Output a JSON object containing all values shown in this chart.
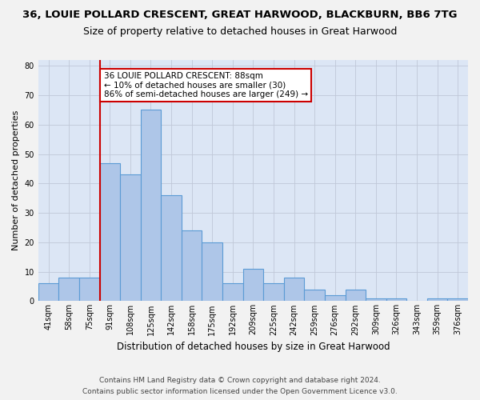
{
  "title1": "36, LOUIE POLLARD CRESCENT, GREAT HARWOOD, BLACKBURN, BB6 7TG",
  "title2": "Size of property relative to detached houses in Great Harwood",
  "xlabel": "Distribution of detached houses by size in Great Harwood",
  "ylabel": "Number of detached properties",
  "bin_labels": [
    "41sqm",
    "58sqm",
    "75sqm",
    "91sqm",
    "108sqm",
    "125sqm",
    "142sqm",
    "158sqm",
    "175sqm",
    "192sqm",
    "209sqm",
    "225sqm",
    "242sqm",
    "259sqm",
    "276sqm",
    "292sqm",
    "309sqm",
    "326sqm",
    "343sqm",
    "359sqm",
    "376sqm"
  ],
  "bar_heights": [
    6,
    8,
    8,
    47,
    43,
    65,
    36,
    24,
    20,
    6,
    11,
    6,
    8,
    4,
    2,
    4,
    1,
    1,
    0,
    1,
    1
  ],
  "bar_color": "#aec6e8",
  "bar_edgecolor": "#5b9bd5",
  "annotation_text": "36 LOUIE POLLARD CRESCENT: 88sqm\n← 10% of detached houses are smaller (30)\n86% of semi-detached houses are larger (249) →",
  "annotation_box_color": "#ffffff",
  "annotation_box_edgecolor": "#cc0000",
  "vline_color": "#cc0000",
  "ylim": [
    0,
    82
  ],
  "yticks": [
    0,
    10,
    20,
    30,
    40,
    50,
    60,
    70,
    80
  ],
  "grid_color": "#c0c8d8",
  "bg_color": "#dce6f5",
  "fig_color": "#f2f2f2",
  "footer1": "Contains HM Land Registry data © Crown copyright and database right 2024.",
  "footer2": "Contains public sector information licensed under the Open Government Licence v3.0.",
  "title1_fontsize": 9.5,
  "title2_fontsize": 9,
  "xlabel_fontsize": 8.5,
  "ylabel_fontsize": 8,
  "tick_fontsize": 7,
  "footer_fontsize": 6.5,
  "annotation_fontsize": 7.5,
  "vline_pos": 2.5
}
